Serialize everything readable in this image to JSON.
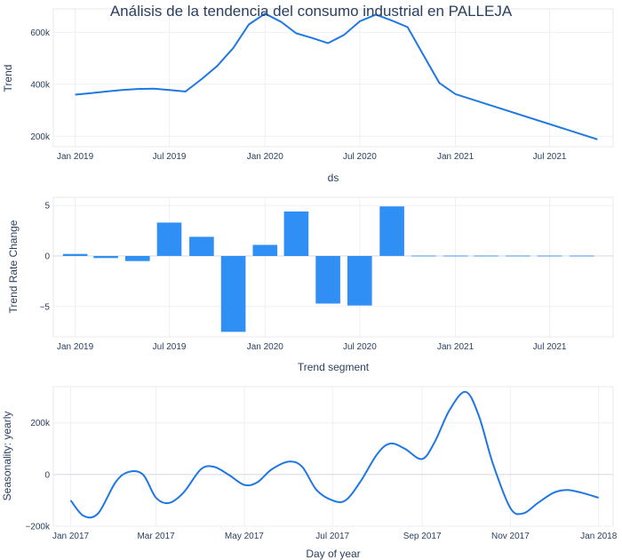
{
  "title": "Análisis de la tendencia del consumo industrial en PALLEJA",
  "colors": {
    "line": "#1f77e4",
    "bar": "#2f8ff5",
    "grid": "#eceff4",
    "zero": "#dfe3ea",
    "frame": "#e6e8ee"
  },
  "chart_data": [
    {
      "type": "line",
      "name": "trend",
      "xlabel": "ds",
      "ylabel": "Trend",
      "xlim": [
        "2018-11-20",
        "2021-10-31"
      ],
      "ylim": [
        160000,
        690000
      ],
      "x_ticks": [
        {
          "at": "2019-01-01",
          "label": "Jan 2019"
        },
        {
          "at": "2019-07-01",
          "label": "Jul 2019"
        },
        {
          "at": "2020-01-01",
          "label": "Jan 2020"
        },
        {
          "at": "2020-07-01",
          "label": "Jul 2020"
        },
        {
          "at": "2021-01-01",
          "label": "Jan 2021"
        },
        {
          "at": "2021-07-01",
          "label": "Jul 2021"
        }
      ],
      "y_ticks": [
        {
          "at": 200000,
          "label": "200k"
        },
        {
          "at": 400000,
          "label": "400k"
        },
        {
          "at": 600000,
          "label": "600k"
        }
      ],
      "x": [
        "2019-01-01",
        "2019-02-01",
        "2019-03-01",
        "2019-04-01",
        "2019-05-01",
        "2019-06-01",
        "2019-07-01",
        "2019-08-01",
        "2019-09-01",
        "2019-10-01",
        "2019-11-01",
        "2019-12-01",
        "2020-01-01",
        "2020-02-01",
        "2020-03-01",
        "2020-04-01",
        "2020-05-01",
        "2020-06-01",
        "2020-07-01",
        "2020-08-01",
        "2020-09-01",
        "2020-10-01",
        "2020-11-01",
        "2020-12-01",
        "2021-01-01",
        "2021-10-01"
      ],
      "y": [
        360000,
        366000,
        372000,
        378000,
        382000,
        383000,
        378000,
        372000,
        420000,
        470000,
        540000,
        630000,
        672000,
        640000,
        596000,
        578000,
        558000,
        590000,
        642000,
        668000,
        645000,
        620000,
        510000,
        405000,
        362000,
        188000
      ]
    },
    {
      "type": "bar",
      "name": "trend_rate_change",
      "xlabel": "Trend segment",
      "ylabel": "Trend Rate Change",
      "xlim": [
        "2018-11-20",
        "2021-10-31"
      ],
      "ylim": [
        -8,
        5.8
      ],
      "x_ticks": [
        {
          "at": "2019-01-01",
          "label": "Jan 2019"
        },
        {
          "at": "2019-07-01",
          "label": "Jul 2019"
        },
        {
          "at": "2020-01-01",
          "label": "Jan 2020"
        },
        {
          "at": "2020-07-01",
          "label": "Jul 2020"
        },
        {
          "at": "2021-01-01",
          "label": "Jan 2021"
        },
        {
          "at": "2021-07-01",
          "label": "Jul 2021"
        }
      ],
      "y_ticks": [
        {
          "at": -5,
          "label": "−5"
        },
        {
          "at": 0,
          "label": "0"
        },
        {
          "at": 5,
          "label": "5"
        }
      ],
      "x": [
        "2019-01-01",
        "2019-03-01",
        "2019-05-01",
        "2019-07-01",
        "2019-09-01",
        "2019-11-01",
        "2020-01-01",
        "2020-03-01",
        "2020-05-01",
        "2020-07-01",
        "2020-09-01",
        "2020-11-01",
        "2021-01-01",
        "2021-03-01",
        "2021-05-01",
        "2021-07-01",
        "2021-09-01"
      ],
      "values": [
        0.2,
        -0.2,
        -0.5,
        3.3,
        1.9,
        -7.5,
        1.1,
        4.4,
        -4.7,
        -4.9,
        4.9,
        0,
        0,
        0,
        0,
        0,
        0
      ]
    },
    {
      "type": "line",
      "name": "yearly_seasonality",
      "xlabel": "Day of year",
      "ylabel": "Seasonality: yearly",
      "xlim": [
        "2016-12-20",
        "2018-01-11"
      ],
      "ylim": [
        -200000,
        340000
      ],
      "x_ticks": [
        {
          "at": "2017-01-01",
          "label": "Jan 2017"
        },
        {
          "at": "2017-03-01",
          "label": "Mar 2017"
        },
        {
          "at": "2017-05-01",
          "label": "May 2017"
        },
        {
          "at": "2017-07-01",
          "label": "Jul 2017"
        },
        {
          "at": "2017-09-01",
          "label": "Sep 2017"
        },
        {
          "at": "2017-11-01",
          "label": "Nov 2017"
        },
        {
          "at": "2018-01-01",
          "label": "Jan 2018"
        }
      ],
      "y_ticks": [
        {
          "at": -200000,
          "label": "−200k"
        },
        {
          "at": 0,
          "label": "0"
        },
        {
          "at": 200000,
          "label": "200k"
        }
      ],
      "x": [
        "2017-01-01",
        "2017-01-10",
        "2017-01-20",
        "2017-02-01",
        "2017-02-10",
        "2017-02-20",
        "2017-03-01",
        "2017-03-10",
        "2017-03-20",
        "2017-04-01",
        "2017-04-10",
        "2017-04-20",
        "2017-05-01",
        "2017-05-10",
        "2017-05-20",
        "2017-06-01",
        "2017-06-10",
        "2017-06-20",
        "2017-07-01",
        "2017-07-10",
        "2017-07-20",
        "2017-08-01",
        "2017-08-10",
        "2017-08-20",
        "2017-09-01",
        "2017-09-10",
        "2017-09-20",
        "2017-10-01",
        "2017-10-10",
        "2017-10-20",
        "2017-11-01",
        "2017-11-10",
        "2017-11-20",
        "2017-12-01",
        "2017-12-10",
        "2017-12-20",
        "2018-01-01"
      ],
      "y": [
        -100000,
        -160000,
        -150000,
        -30000,
        10000,
        0,
        -90000,
        -110000,
        -70000,
        20000,
        30000,
        0,
        -40000,
        -30000,
        20000,
        50000,
        30000,
        -60000,
        -100000,
        -100000,
        -30000,
        80000,
        120000,
        100000,
        60000,
        130000,
        250000,
        320000,
        230000,
        40000,
        -130000,
        -150000,
        -110000,
        -70000,
        -60000,
        -70000,
        -90000
      ]
    }
  ]
}
